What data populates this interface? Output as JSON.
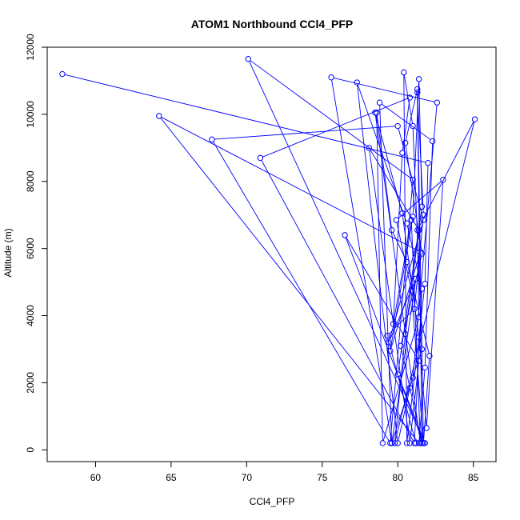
{
  "chart_data": {
    "type": "scatter",
    "title": "ATOM1 Northbound CCl4_PFP",
    "xlabel": "CCl4_PFP",
    "ylabel": "Altitude (m)",
    "xlim": [
      56.8,
      86.5
    ],
    "ylim": [
      -350,
      12000
    ],
    "x_ticks": [
      60,
      65,
      70,
      75,
      80,
      85
    ],
    "y_ticks": [
      0,
      2000,
      4000,
      6000,
      8000,
      10000,
      12000
    ],
    "grid": false,
    "marker": "open-circle",
    "connected": true,
    "colors": {
      "series": "#0000ff",
      "axis": "#000000",
      "background": "#ffffff"
    },
    "series": [
      {
        "points": [
          [
            57.8,
            11200
          ],
          [
            82.0,
            8550
          ],
          [
            81.8,
            4950
          ],
          [
            80.6,
            200
          ],
          [
            80.4,
            11250
          ],
          [
            81.0,
            9650
          ],
          [
            81.6,
            3000
          ],
          [
            79.6,
            200
          ],
          [
            78.8,
            10350
          ],
          [
            82.3,
            9200
          ],
          [
            81.8,
            2450
          ],
          [
            81.4,
            200
          ],
          [
            64.2,
            9950
          ],
          [
            81.5,
            5900
          ],
          [
            79.5,
            2950
          ],
          [
            81.0,
            6950
          ],
          [
            81.4,
            11050
          ],
          [
            81.6,
            7250
          ],
          [
            80.0,
            2250
          ],
          [
            81.8,
            200
          ],
          [
            70.1,
            11650
          ],
          [
            81.0,
            8050
          ],
          [
            79.5,
            200
          ],
          [
            67.7,
            9250
          ],
          [
            80.0,
            9650
          ],
          [
            81.7,
            6850
          ],
          [
            79.4,
            3200
          ],
          [
            81.2,
            5100
          ],
          [
            79.6,
            200
          ],
          [
            75.6,
            11100
          ],
          [
            82.6,
            10350
          ],
          [
            81.0,
            2150
          ],
          [
            80.8,
            1850
          ],
          [
            80.0,
            200
          ],
          [
            77.3,
            10950
          ],
          [
            80.6,
            6750
          ],
          [
            81.6,
            4800
          ],
          [
            81.1,
            200
          ],
          [
            70.9,
            8700
          ],
          [
            80.8,
            10500
          ],
          [
            80.3,
            8850
          ],
          [
            79.7,
            3750
          ],
          [
            80.9,
            6850
          ],
          [
            81.5,
            200
          ],
          [
            78.5,
            10050
          ],
          [
            80.3,
            7050
          ],
          [
            81.4,
            3350
          ],
          [
            81.9,
            650
          ],
          [
            83.0,
            8050
          ],
          [
            79.9,
            6850
          ],
          [
            80.9,
            4750
          ],
          [
            81.7,
            200
          ],
          [
            76.5,
            6400
          ],
          [
            81.4,
            2650
          ],
          [
            80.8,
            200
          ],
          [
            78.1,
            9000
          ],
          [
            81.4,
            6550
          ],
          [
            80.5,
            3450
          ],
          [
            79.8,
            200
          ],
          [
            85.1,
            9850
          ],
          [
            81.3,
            6550
          ],
          [
            81.4,
            3950
          ],
          [
            79.0,
            200
          ],
          [
            78.6,
            10050
          ],
          [
            79.6,
            6550
          ],
          [
            80.6,
            5600
          ],
          [
            82.1,
            2800
          ],
          [
            81.7,
            200
          ],
          [
            81.3,
            10750
          ],
          [
            80.5,
            9150
          ],
          [
            81.6,
            5850
          ],
          [
            80.2,
            3100
          ],
          [
            81.6,
            200
          ],
          [
            81.3,
            10650
          ],
          [
            81.7,
            7000
          ],
          [
            81.1,
            4200
          ],
          [
            79.3,
            3400
          ],
          [
            81.2,
            200
          ]
        ]
      }
    ]
  }
}
